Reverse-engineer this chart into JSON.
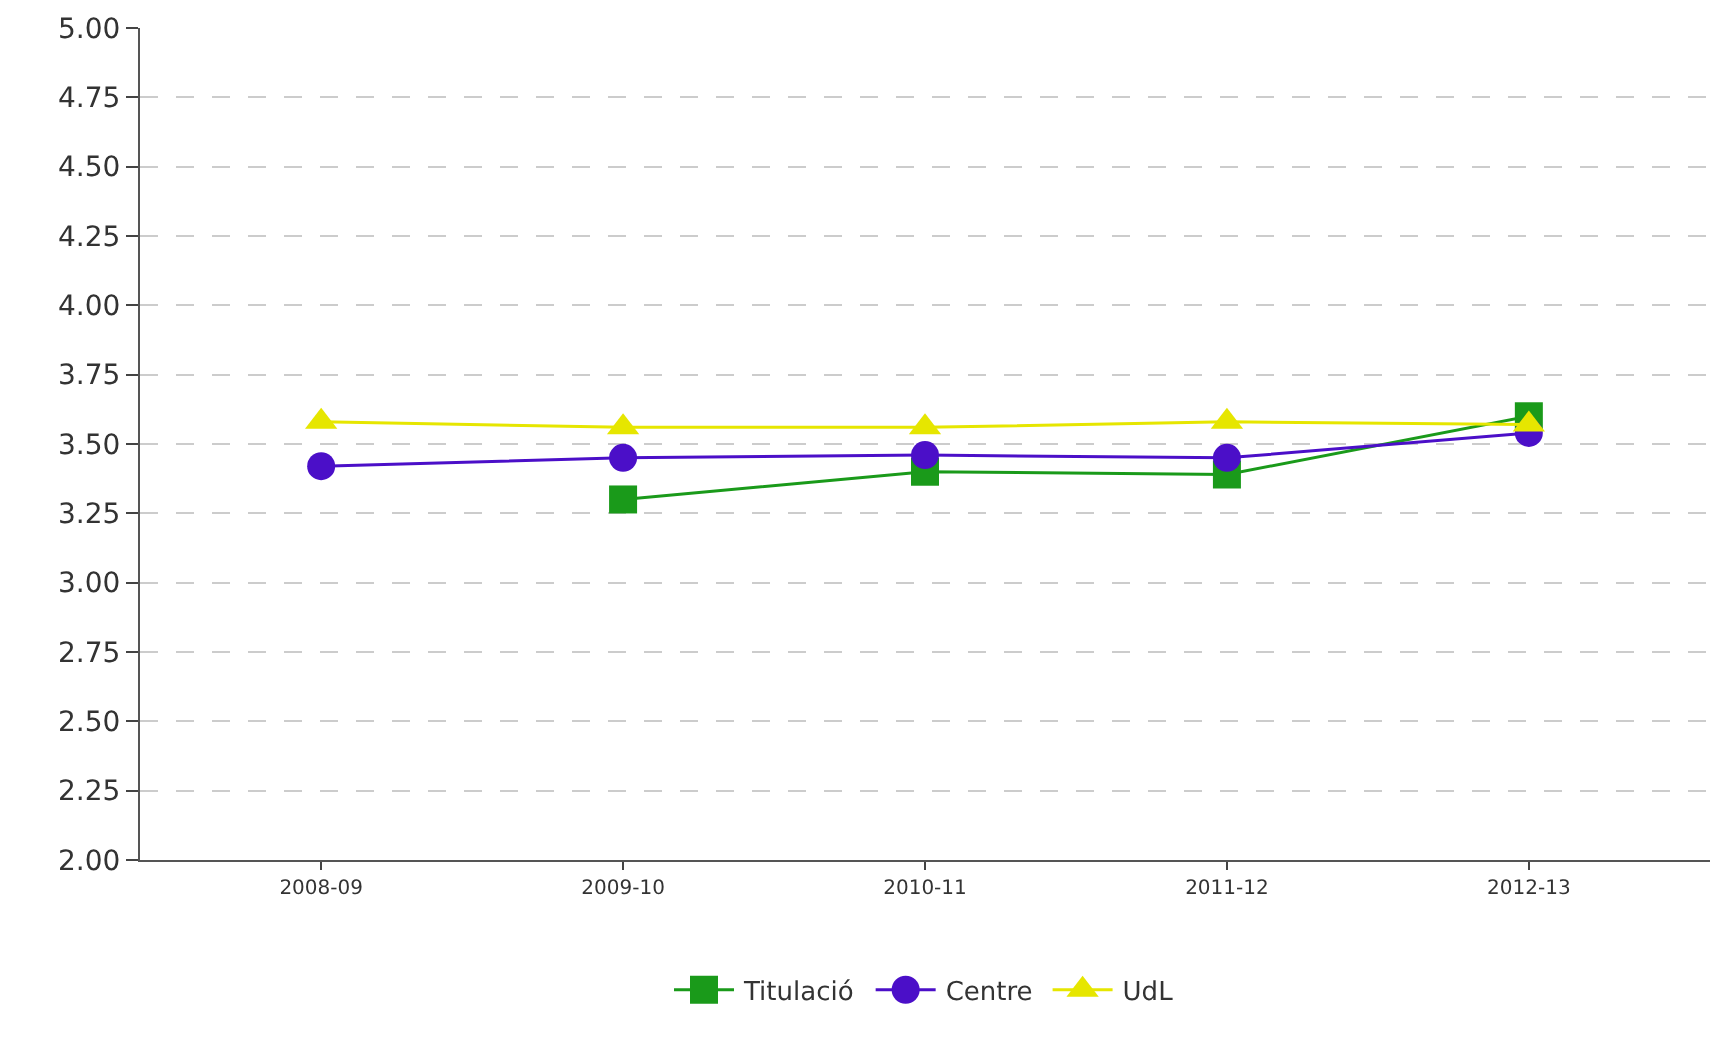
{
  "chart_data": {
    "type": "line",
    "categories": [
      "2008-09",
      "2009-10",
      "2010-11",
      "2011-12",
      "2012-13"
    ],
    "series": [
      {
        "name": "Titulació",
        "color": "#1a9a1a",
        "marker": "square",
        "values": [
          null,
          3.3,
          3.4,
          3.39,
          3.6
        ]
      },
      {
        "name": "Centre",
        "color": "#4b0fc8",
        "marker": "circle",
        "values": [
          3.42,
          3.45,
          3.46,
          3.45,
          3.54
        ]
      },
      {
        "name": "UdL",
        "color": "#e6e600",
        "marker": "triangle",
        "values": [
          3.58,
          3.56,
          3.56,
          3.58,
          3.57
        ]
      }
    ],
    "ylim": [
      2,
      5
    ],
    "yticks": [
      {
        "value": 2,
        "label": "2.00"
      },
      {
        "value": 2.25,
        "label": "2.25"
      },
      {
        "value": 2.5,
        "label": "2.50"
      },
      {
        "value": 2.75,
        "label": "2.75"
      },
      {
        "value": 3,
        "label": "3.00"
      },
      {
        "value": 3.25,
        "label": "3.25"
      },
      {
        "value": 3.5,
        "label": "3.50"
      },
      {
        "value": 3.75,
        "label": "3.75"
      },
      {
        "value": 4,
        "label": "4.00"
      },
      {
        "value": 4.25,
        "label": "4.25"
      },
      {
        "value": 4.5,
        "label": "4.50"
      },
      {
        "value": 4.75,
        "label": "4.75"
      },
      {
        "value": 5,
        "label": "5.00"
      }
    ],
    "grid": "y",
    "legend": "bottom",
    "line_style": "solid"
  }
}
